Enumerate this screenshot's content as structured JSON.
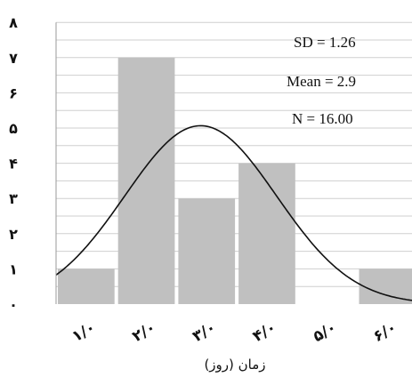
{
  "chart_data": {
    "type": "bar",
    "title": "",
    "xlabel": "زمان (روز)",
    "ylabel": "",
    "categories": [
      "۱/۰",
      "۲/۰",
      "۳/۰",
      "۴/۰",
      "۵/۰",
      "۶/۰"
    ],
    "values": [
      1,
      7,
      3,
      4,
      0,
      1
    ],
    "ylim": [
      0,
      8
    ],
    "yticks": [
      "۰",
      "۱",
      "۲",
      "۳",
      "۴",
      "۵",
      "۶",
      "۷",
      "۸"
    ],
    "grid": true,
    "overlay": {
      "type": "normal-curve",
      "mean": 2.9,
      "sd": 1.26,
      "n": 16
    },
    "stats": [
      "SD = 1.26",
      "Mean = 2.9",
      "N =  16.00"
    ],
    "colors": {
      "bar": "#c0c0c0",
      "grid": "#cfcfcf",
      "curve": "#111111"
    }
  }
}
